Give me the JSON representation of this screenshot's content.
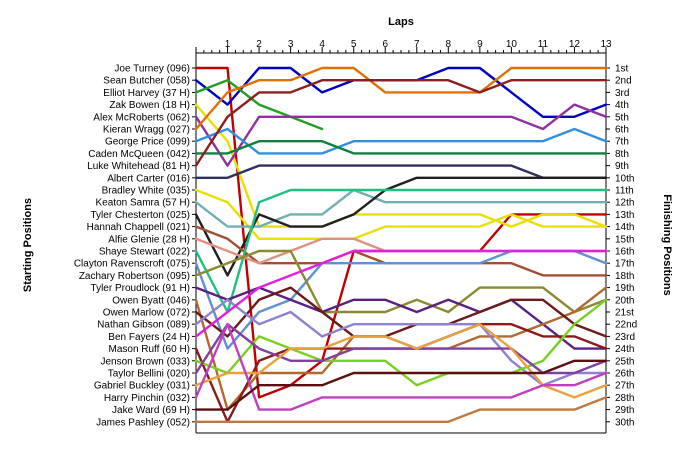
{
  "chart_data": {
    "type": "line",
    "title": "Laps",
    "ylabel_left": "Starting Positions",
    "ylabel_right": "Finishing Positions",
    "laps": [
      1,
      2,
      3,
      4,
      5,
      6,
      7,
      8,
      9,
      10,
      11,
      12,
      13
    ],
    "driver_labels": [
      "Joe Turney (096)",
      "Sean Butcher (058)",
      "Elliot Harvey (37 H)",
      "Zak Bowen (18 H)",
      "Alex McRoberts (062)",
      "Kieran Wragg (027)",
      "George Price (099)",
      "Caden McQueen (042)",
      "Luke Whitehead (81 H)",
      "Albert Carter (016)",
      "Bradley White (035)",
      "Keaton Samra (57 H)",
      "Tyler Chesterton (025)",
      "Hannah Chappell (021)",
      "Alfie Glenie (28 H)",
      "Shaye Stewart (022)",
      "Clayton Ravenscroft (075)",
      "Zachary Robertson (095)",
      "Tyler Proudlock (91 H)",
      "Owen Byatt (046)",
      "Owen Marlow (072)",
      "Nathan Gibson (089)",
      "Ben Fayers (24 H)",
      "Mason Ruff (60 H)",
      "Jenson Brown (033)",
      "Taylor Bellini (020)",
      "Gabriel Buckley (031)",
      "Harry Pinchin (032)",
      "Jake Ward (69 H)",
      "James Pashley (052)"
    ],
    "finishing_labels": [
      "1st",
      "2nd",
      "3rd",
      "4th",
      "5th",
      "6th",
      "7th",
      "8th",
      "9th",
      "10th",
      "11th",
      "12th",
      "13th",
      "14th",
      "15th",
      "16th",
      "17th",
      "18th",
      "19th",
      "20th",
      "21st",
      "22nd",
      "23rd",
      "24th",
      "25th",
      "26th",
      "27th",
      "28th",
      "29th",
      "30th"
    ],
    "series": [
      {
        "color": "#c00000",
        "positions": [
          1,
          1,
          28,
          27,
          25,
          16,
          16,
          16,
          16,
          16,
          13,
          13,
          13,
          13
        ]
      },
      {
        "color": "#0000c0",
        "positions": [
          2,
          4,
          1,
          1,
          3,
          2,
          2,
          2,
          1,
          1,
          3,
          5,
          5,
          4
        ]
      },
      {
        "color": "#20a020",
        "positions": [
          3,
          2,
          4,
          5,
          6
        ]
      },
      {
        "color": "#e8e000",
        "positions": [
          4,
          7,
          14,
          14,
          14,
          13,
          13,
          13,
          13,
          13,
          14,
          13,
          13,
          14
        ]
      },
      {
        "color": "#9030a0",
        "positions": [
          5,
          9,
          5,
          5,
          5,
          5,
          5,
          5,
          5,
          5,
          5,
          6,
          4,
          5
        ]
      },
      {
        "color": "#e07000",
        "positions": [
          6,
          3,
          2,
          2,
          1,
          1,
          3,
          3,
          3,
          3,
          1,
          1,
          1,
          1
        ]
      },
      {
        "color": "#3090e0",
        "positions": [
          7,
          6,
          8,
          8,
          8,
          7,
          7,
          7,
          7,
          7,
          7,
          7,
          6,
          7
        ]
      },
      {
        "color": "#108040",
        "positions": [
          8,
          8,
          7,
          7,
          7,
          8,
          8,
          8,
          8,
          8,
          8,
          8,
          8,
          8
        ]
      },
      {
        "color": "#8b2020",
        "positions": [
          9,
          5,
          3,
          3,
          2,
          2,
          2,
          2,
          2,
          3,
          2,
          2,
          2,
          2
        ]
      },
      {
        "color": "#303060",
        "positions": [
          10,
          10,
          9,
          9,
          9,
          9,
          9,
          9,
          9,
          9,
          9,
          10,
          10,
          10
        ]
      },
      {
        "color": "#e8e000",
        "positions": [
          11,
          12,
          15,
          15,
          15,
          15,
          14,
          14,
          14,
          14,
          13,
          14,
          14,
          14
        ]
      },
      {
        "color": "#70b0b0",
        "positions": [
          12,
          14,
          14,
          13,
          13,
          11,
          12,
          12,
          12,
          12,
          12,
          12,
          12,
          12
        ]
      },
      {
        "color": "#202020",
        "positions": [
          13,
          18,
          13,
          14,
          14,
          13,
          11,
          10,
          10,
          10,
          10,
          10,
          10,
          10
        ]
      },
      {
        "color": "#a05030",
        "positions": [
          14,
          15,
          17,
          17,
          17,
          16,
          17,
          17,
          17,
          17,
          17,
          18,
          18,
          18
        ]
      },
      {
        "color": "#e09080",
        "positions": [
          15,
          16,
          17,
          16,
          15,
          15,
          16,
          16,
          16,
          16,
          16,
          16,
          16,
          16
        ]
      },
      {
        "color": "#20c080",
        "positions": [
          16,
          21,
          12,
          11,
          11,
          11,
          11,
          11,
          11,
          11,
          11,
          11,
          11,
          11
        ]
      },
      {
        "color": "#6090d0",
        "positions": [
          17,
          24,
          21,
          20,
          17,
          17,
          17,
          17,
          17,
          17,
          16,
          16,
          16,
          17
        ]
      },
      {
        "color": "#8a8a30",
        "positions": [
          18,
          17,
          16,
          16,
          21,
          21,
          21,
          20,
          21,
          19,
          19,
          19,
          21,
          20
        ]
      },
      {
        "color": "#5a2080",
        "positions": [
          19,
          20,
          19,
          20,
          21,
          20,
          20,
          21,
          20,
          21,
          20,
          22,
          24,
          24
        ]
      },
      {
        "color": "#b06a30",
        "positions": [
          20,
          29,
          26,
          26,
          26,
          23,
          23,
          24,
          24,
          23,
          23,
          22,
          21,
          19
        ]
      },
      {
        "color": "#6a1a1a",
        "positions": [
          21,
          23,
          20,
          19,
          21,
          23,
          23,
          22,
          22,
          21,
          20,
          20,
          22,
          23
        ]
      },
      {
        "color": "#9080d0",
        "positions": [
          22,
          20,
          22,
          21,
          23,
          22,
          22,
          22,
          22,
          22,
          25,
          27,
          26,
          26
        ]
      },
      {
        "color": "#e020e0",
        "positions": [
          23,
          21,
          19,
          18,
          17,
          16,
          16,
          16,
          16,
          16,
          16,
          16,
          16,
          16
        ]
      },
      {
        "color": "#8b1a1a",
        "positions": [
          24,
          30,
          25,
          24,
          24,
          24,
          24,
          24,
          23,
          22,
          22,
          23,
          23,
          24
        ]
      },
      {
        "color": "#7ad020",
        "positions": [
          25,
          26,
          23,
          24,
          25,
          25,
          25,
          27,
          26,
          26,
          26,
          25,
          22,
          20
        ]
      },
      {
        "color": "#8040a0",
        "positions": [
          26,
          22,
          24,
          25,
          25,
          24,
          24,
          24,
          24,
          24,
          24,
          26,
          26,
          25
        ]
      },
      {
        "color": "#e8a040",
        "positions": [
          27,
          26,
          26,
          24,
          24,
          23,
          23,
          24,
          23,
          22,
          24,
          27,
          28,
          27
        ]
      },
      {
        "color": "#c040c0",
        "positions": [
          28,
          22,
          29,
          29,
          28,
          28,
          28,
          28,
          28,
          28,
          28,
          27,
          27,
          26
        ]
      },
      {
        "color": "#5a1010",
        "positions": [
          29,
          29,
          27,
          27,
          27,
          26,
          26,
          26,
          26,
          26,
          26,
          26,
          25,
          25
        ]
      },
      {
        "color": "#c07840",
        "positions": [
          30,
          30,
          30,
          30,
          30,
          30,
          30,
          30,
          30,
          29,
          29,
          29,
          29,
          28
        ]
      }
    ]
  }
}
